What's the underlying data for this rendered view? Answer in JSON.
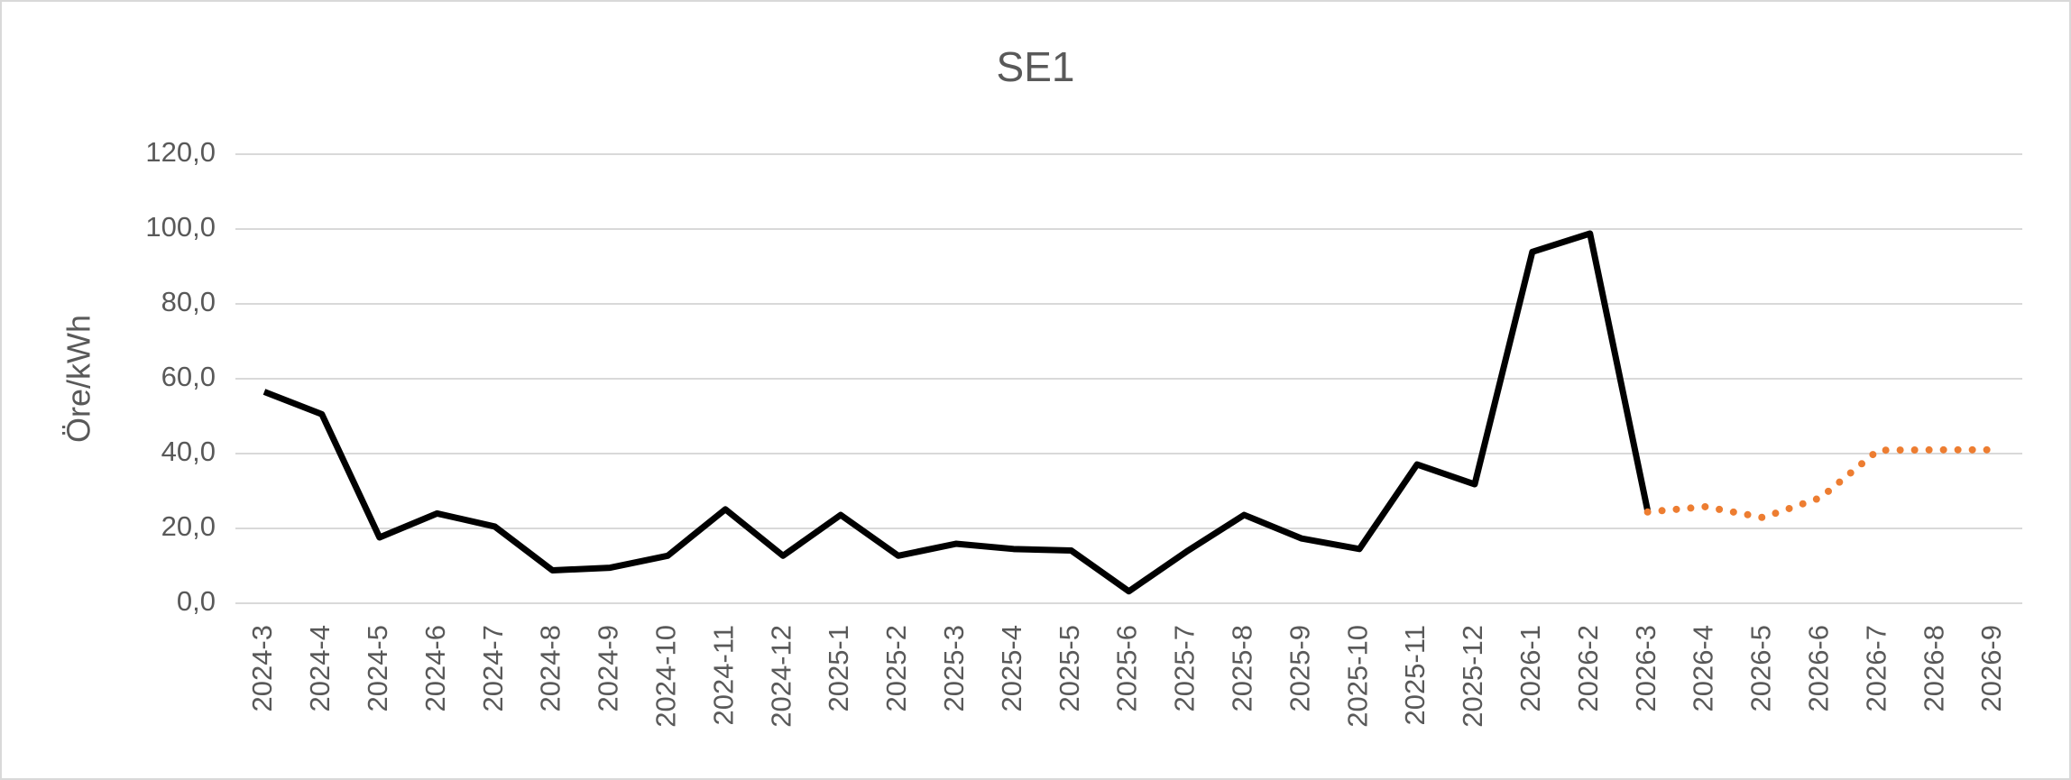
{
  "chart_data": {
    "type": "line",
    "title": "SE1",
    "y_label": "Öre/kWh",
    "categories": [
      "2024-3",
      "2024-4",
      "2024-5",
      "2024-6",
      "2024-7",
      "2024-8",
      "2024-9",
      "2024-10",
      "2024-11",
      "2024-12",
      "2025-1",
      "2025-2",
      "2025-3",
      "2025-4",
      "2025-5",
      "2025-6",
      "2025-7",
      "2025-8",
      "2025-9",
      "2025-10",
      "2025-11",
      "2025-12",
      "2026-1",
      "2026-2",
      "2026-3",
      "2026-4",
      "2026-5",
      "2026-6",
      "2026-7",
      "2026-8",
      "2026-9"
    ],
    "series": [
      {
        "color": "#000000",
        "dash": false,
        "values": [
          56.5,
          50.5,
          17.6,
          24.0,
          20.5,
          8.8,
          9.5,
          12.7,
          25.1,
          12.7,
          23.6,
          12.7,
          15.9,
          14.5,
          14.1,
          3.2,
          13.8,
          23.6,
          17.3,
          14.5,
          37.1,
          31.8,
          93.9,
          98.8,
          24.7,
          null,
          null,
          null,
          null,
          null,
          null
        ]
      },
      {
        "color": "#ed7d31",
        "dash": true,
        "values": [
          null,
          null,
          null,
          null,
          null,
          null,
          null,
          null,
          null,
          null,
          null,
          null,
          null,
          null,
          null,
          null,
          null,
          null,
          null,
          null,
          null,
          null,
          null,
          null,
          24.4,
          25.8,
          22.9,
          28.2,
          40.9,
          41.0,
          41.0
        ]
      }
    ],
    "ylim": [
      0,
      120
    ],
    "yticks": [
      {
        "value": 0,
        "label": "0,0"
      },
      {
        "value": 20,
        "label": "20,0"
      },
      {
        "value": 40,
        "label": "40,0"
      },
      {
        "value": 60,
        "label": "60,0"
      },
      {
        "value": 80,
        "label": "80,0"
      },
      {
        "value": 100,
        "label": "100,0"
      },
      {
        "value": 120,
        "label": "120,0"
      }
    ],
    "grid": true
  }
}
